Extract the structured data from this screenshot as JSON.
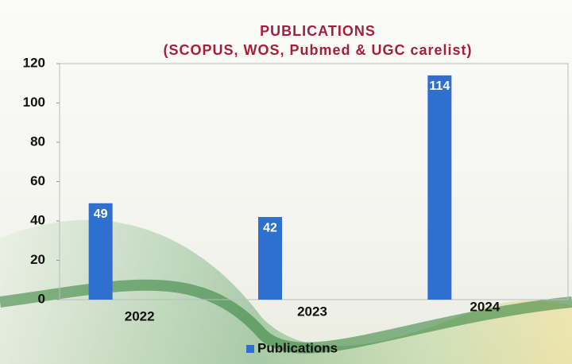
{
  "chart_data": {
    "type": "bar",
    "title": "PUBLICATIONS",
    "subtitle": "(SCOPUS, WOS, Pubmed & UGC carelist)",
    "categories": [
      "2022",
      "2023",
      "2024"
    ],
    "series": [
      {
        "name": "Publications",
        "color": "#2f6fd0",
        "values": [
          49,
          42,
          114
        ]
      }
    ],
    "ylim": [
      0,
      120
    ],
    "yticks": [
      0,
      20,
      40,
      60,
      80,
      100,
      120
    ],
    "grid": false,
    "legend": "bottom"
  }
}
